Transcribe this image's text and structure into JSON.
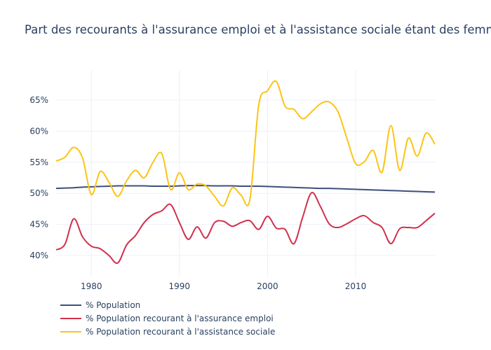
{
  "chart_data": {
    "type": "line",
    "title": "Part des recourants à l'assurance emploi et à l'assistance sociale étant des femmes,",
    "xlabel": "",
    "ylabel": "",
    "xlim": [
      1976,
      2019
    ],
    "ylim": [
      36.5,
      72
    ],
    "grid": true,
    "legend_position": "bottom-left",
    "x_ticks": [
      1980,
      1990,
      2000,
      2010
    ],
    "x_tick_labels": [
      "1980",
      "1990",
      "2000",
      "2010"
    ],
    "y_ticks": [
      40,
      45,
      50,
      55,
      60,
      65
    ],
    "y_tick_labels": [
      "40%",
      "45%",
      "50%",
      "55%",
      "60%",
      "65%"
    ],
    "x": [
      1976,
      1977,
      1978,
      1979,
      1980,
      1981,
      1982,
      1983,
      1984,
      1985,
      1986,
      1987,
      1988,
      1989,
      1990,
      1991,
      1992,
      1993,
      1994,
      1995,
      1996,
      1997,
      1998,
      1999,
      2000,
      2001,
      2002,
      2003,
      2004,
      2005,
      2006,
      2007,
      2008,
      2009,
      2010,
      2011,
      2012,
      2013,
      2014,
      2015,
      2016,
      2017,
      2018,
      2019
    ],
    "series": [
      {
        "name": "% Population",
        "color": "#3d4f7c",
        "values": [
          50.8,
          50.85,
          50.9,
          51.0,
          51.05,
          51.1,
          51.15,
          51.2,
          51.2,
          51.2,
          51.2,
          51.15,
          51.15,
          51.15,
          51.2,
          51.25,
          51.25,
          51.25,
          51.2,
          51.2,
          51.2,
          51.15,
          51.15,
          51.15,
          51.1,
          51.05,
          51.0,
          50.95,
          50.9,
          50.85,
          50.8,
          50.8,
          50.75,
          50.7,
          50.65,
          50.6,
          50.55,
          50.5,
          50.45,
          50.4,
          50.35,
          50.3,
          50.25,
          50.2
        ]
      },
      {
        "name": "% Population recourant à l'assurance emploi",
        "color": "#d1304d",
        "values": [
          40.9,
          41.8,
          45.9,
          43.0,
          41.5,
          41.1,
          40.0,
          38.8,
          41.7,
          43.2,
          45.3,
          46.6,
          47.2,
          48.2,
          45.3,
          42.6,
          44.6,
          42.8,
          45.3,
          45.5,
          44.7,
          45.3,
          45.6,
          44.2,
          46.3,
          44.4,
          44.2,
          41.9,
          46.2,
          50.1,
          47.9,
          45.1,
          44.5,
          45.1,
          45.9,
          46.4,
          45.3,
          44.5,
          41.9,
          44.3,
          44.5,
          44.5,
          45.6,
          46.8
        ]
      },
      {
        "name": "% Population recourant à l'assistance sociale",
        "color": "#fcc414",
        "values": [
          55.2,
          55.8,
          57.4,
          55.7,
          49.8,
          53.5,
          51.8,
          49.5,
          52.0,
          53.7,
          52.5,
          55.0,
          56.4,
          50.6,
          53.3,
          50.6,
          51.5,
          51.2,
          49.5,
          48.0,
          50.9,
          49.7,
          49.0,
          64.2,
          66.5,
          68.0,
          64.0,
          63.5,
          62.0,
          63.1,
          64.4,
          64.7,
          63.1,
          58.9,
          54.8,
          55.1,
          56.9,
          53.4,
          60.9,
          53.7,
          58.9,
          56.0,
          59.7,
          57.9
        ]
      }
    ]
  }
}
